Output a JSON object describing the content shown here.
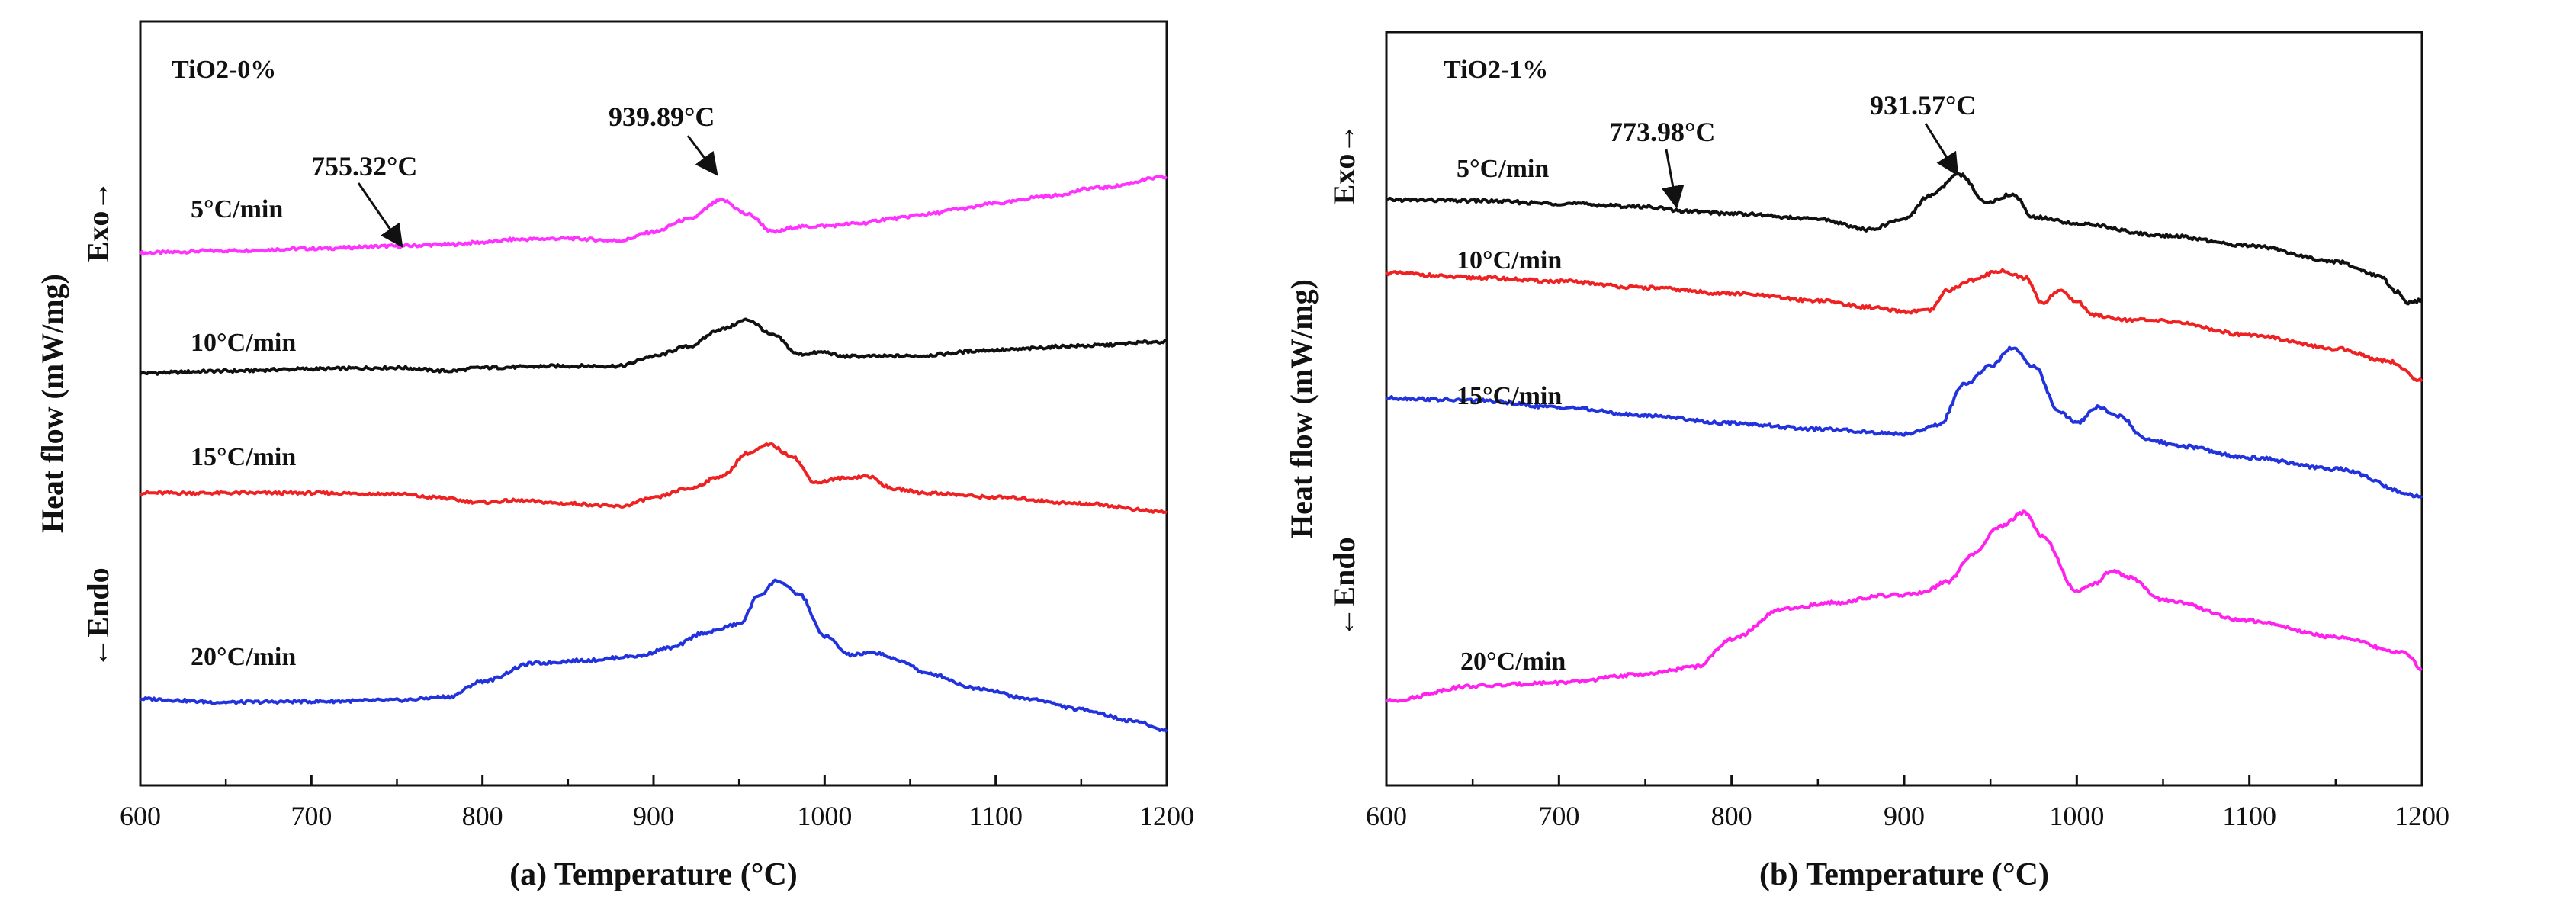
{
  "chart_data": [
    {
      "type": "line",
      "panel_label": "TiO2-0%",
      "xlabel": "(a) Temperature (°C)",
      "ylabel": "Heat flow (mW/mg)",
      "exo_label": "Exo→",
      "endo_label": "←Endo",
      "xlim": [
        600,
        1200
      ],
      "xticks": [
        600,
        700,
        800,
        900,
        1000,
        1100,
        1200
      ],
      "series": [
        {
          "name": "5°C/min",
          "color": "#ff33ff",
          "x": [
            600,
            650,
            700,
            750,
            780,
            800,
            820,
            850,
            880,
            900,
            920,
            940,
            955,
            970,
            985,
            1000,
            1020,
            1040,
            1060,
            1080,
            1100,
            1130,
            1160,
            1200
          ],
          "y": [
            -0.3,
            -0.25,
            -0.2,
            -0.14,
            -0.1,
            -0.05,
            0.02,
            0.04,
            -0.01,
            0.2,
            0.5,
            0.95,
            0.62,
            0.2,
            0.32,
            0.34,
            0.4,
            0.52,
            0.62,
            0.75,
            0.88,
            1.05,
            1.25,
            1.5
          ]
        },
        {
          "name": "10°C/min",
          "color": "#111111",
          "x": [
            600,
            650,
            700,
            750,
            780,
            800,
            850,
            880,
            900,
            920,
            940,
            955,
            970,
            985,
            1000,
            1010,
            1030,
            1050,
            1100,
            1150,
            1200
          ],
          "y": [
            -0.35,
            -0.3,
            -0.25,
            -0.22,
            -0.3,
            -0.22,
            -0.18,
            -0.18,
            0.05,
            0.28,
            0.7,
            0.92,
            0.55,
            0.1,
            0.15,
            0.05,
            0.05,
            0.06,
            0.2,
            0.3,
            0.4
          ]
        },
        {
          "name": "15°C/min",
          "color": "#ee2222",
          "x": [
            600,
            650,
            700,
            750,
            770,
            800,
            820,
            850,
            880,
            900,
            920,
            940,
            955,
            968,
            980,
            995,
            1010,
            1025,
            1040,
            1060,
            1100,
            1150,
            1200
          ],
          "y": [
            -0.3,
            -0.3,
            -0.3,
            -0.32,
            -0.4,
            -0.52,
            -0.48,
            -0.55,
            -0.62,
            -0.42,
            -0.2,
            0.1,
            0.65,
            0.85,
            0.6,
            -0.05,
            0.05,
            0.1,
            -0.2,
            -0.3,
            -0.4,
            -0.55,
            -0.75
          ]
        },
        {
          "name": "20°C/min",
          "color": "#2233dd",
          "x": [
            600,
            650,
            700,
            750,
            780,
            800,
            830,
            860,
            890,
            910,
            930,
            950,
            962,
            972,
            985,
            1000,
            1015,
            1030,
            1045,
            1060,
            1090,
            1120,
            1150,
            1180,
            1200
          ],
          "y": [
            -0.3,
            -0.38,
            -0.36,
            -0.33,
            -0.25,
            0.12,
            0.55,
            0.62,
            0.72,
            0.92,
            1.28,
            1.48,
            2.18,
            2.52,
            2.2,
            1.2,
            0.75,
            0.8,
            0.6,
            0.3,
            -0.05,
            -0.3,
            -0.55,
            -0.82,
            -1.05
          ]
        }
      ],
      "annotations": [
        {
          "text": "755.32°C",
          "x": 755,
          "series": "5°C/min"
        },
        {
          "text": "939.89°C",
          "x": 940,
          "series": "5°C/min"
        }
      ]
    },
    {
      "type": "line",
      "panel_label": "TiO2-1%",
      "xlabel": "(b) Temperature (°C)",
      "ylabel": "Heat flow (mW/mg)",
      "exo_label": "Exo→",
      "endo_label": "←Endo",
      "xlim": [
        600,
        1200
      ],
      "xticks": [
        600,
        700,
        800,
        900,
        1000,
        1100,
        1200
      ],
      "series": [
        {
          "name": "5°C/min",
          "color": "#111111",
          "x": [
            600,
            650,
            700,
            750,
            774,
            800,
            850,
            880,
            900,
            915,
            932,
            948,
            963,
            975,
            1000,
            1050,
            1100,
            1150,
            1175,
            1185,
            1192,
            1200
          ],
          "y": [
            -0.2,
            -0.22,
            -0.28,
            -0.35,
            -0.45,
            -0.5,
            -0.62,
            -0.85,
            -0.62,
            -0.1,
            0.35,
            -0.25,
            -0.08,
            -0.58,
            -0.72,
            -0.98,
            -1.2,
            -1.55,
            -1.85,
            -2.2,
            -2.45,
            -2.4
          ]
        },
        {
          "name": "10°C/min",
          "color": "#ee2222",
          "x": [
            600,
            650,
            700,
            750,
            800,
            850,
            880,
            900,
            915,
            925,
            940,
            955,
            970,
            980,
            990,
            1000,
            1010,
            1030,
            1050,
            1100,
            1150,
            1180,
            1200
          ],
          "y": [
            0.2,
            0.1,
            0.02,
            -0.12,
            -0.25,
            -0.4,
            -0.55,
            -0.65,
            -0.62,
            -0.18,
            0.05,
            0.25,
            0.1,
            -0.45,
            -0.18,
            -0.42,
            -0.72,
            -0.82,
            -0.85,
            -1.15,
            -1.45,
            -1.72,
            -2.15
          ]
        },
        {
          "name": "15°C/min",
          "color": "#2233dd",
          "x": [
            600,
            650,
            700,
            750,
            800,
            850,
            900,
            920,
            935,
            950,
            963,
            975,
            990,
            1000,
            1012,
            1025,
            1040,
            1060,
            1100,
            1150,
            1200
          ],
          "y": [
            0.1,
            0.05,
            -0.1,
            -0.28,
            -0.45,
            -0.58,
            -0.68,
            -0.5,
            0.4,
            0.8,
            1.2,
            0.8,
            -0.2,
            -0.45,
            -0.1,
            -0.3,
            -0.8,
            -0.95,
            -1.2,
            -1.45,
            -2.05
          ]
        },
        {
          "name": "20°C/min",
          "color": "#ff22ee",
          "x": [
            600,
            650,
            700,
            750,
            780,
            800,
            830,
            860,
            890,
            910,
            925,
            940,
            955,
            970,
            980,
            1000,
            1010,
            1020,
            1030,
            1050,
            1100,
            1150,
            1190,
            1200
          ],
          "y": [
            -0.4,
            -0.08,
            0.0,
            0.18,
            0.35,
            0.95,
            1.6,
            1.75,
            1.9,
            1.95,
            2.2,
            2.8,
            3.4,
            3.72,
            3.2,
            2.0,
            2.15,
            2.45,
            2.3,
            1.8,
            1.35,
            1.0,
            0.65,
            0.3
          ]
        }
      ],
      "annotations": [
        {
          "text": "773.98°C",
          "x": 774,
          "series": "5°C/min"
        },
        {
          "text": "931.57°C",
          "x": 932,
          "series": "5°C/min"
        }
      ]
    }
  ]
}
